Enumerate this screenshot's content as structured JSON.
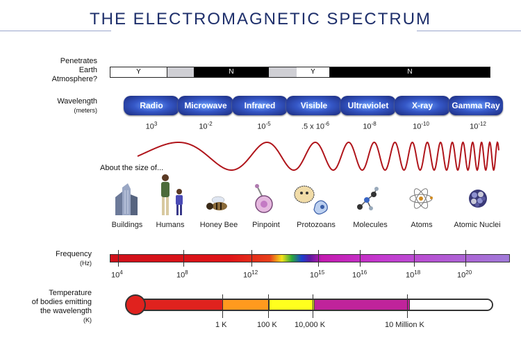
{
  "title": "THE ELECTROMAGNETIC SPECTRUM",
  "atmosphere": {
    "label_line1": "Penetrates",
    "label_line2": "Earth",
    "label_line3": "Atmosphere?",
    "segments": [
      {
        "text": "Y",
        "color": "#ffffff"
      },
      {
        "text": "",
        "color": "#cfcfd4"
      },
      {
        "text": "N",
        "color": "#000000"
      },
      {
        "text": "",
        "color": "#cfcfd4"
      },
      {
        "text": "Y",
        "color": "#ffffff"
      },
      {
        "text": "N",
        "color": "#000000"
      }
    ]
  },
  "wavelength": {
    "label": "Wavelength",
    "unit": "(meters)",
    "bands": [
      "Radio",
      "Microwave",
      "Infrared",
      "Visible",
      "Ultraviolet",
      "X-ray",
      "Gamma Ray"
    ],
    "values": [
      {
        "base": "10",
        "exp": "3"
      },
      {
        "base": "10",
        "exp": "-2"
      },
      {
        "base": "10",
        "exp": "-5"
      },
      {
        "base": ".5 x 10",
        "exp": "-6"
      },
      {
        "base": "10",
        "exp": "-8"
      },
      {
        "base": "10",
        "exp": "-10"
      },
      {
        "base": "10",
        "exp": "-12"
      }
    ]
  },
  "size": {
    "label": "About the size of...",
    "items": [
      "Buildings",
      "Humans",
      "Honey Bee",
      "Pinpoint",
      "Protozoans",
      "Molecules",
      "Atoms",
      "Atomic Nuclei"
    ],
    "icons": [
      "building-icon",
      "humans-icon",
      "honey-bee-icon",
      "pinpoint-icon",
      "protozoans-icon",
      "molecules-icon",
      "atom-icon",
      "atomic-nucleus-icon"
    ]
  },
  "frequency": {
    "label": "Frequency",
    "unit": "(Hz)",
    "ticks": [
      {
        "base": "10",
        "exp": "4"
      },
      {
        "base": "10",
        "exp": "8"
      },
      {
        "base": "10",
        "exp": "12"
      },
      {
        "base": "10",
        "exp": "15"
      },
      {
        "base": "10",
        "exp": "16"
      },
      {
        "base": "10",
        "exp": "18"
      },
      {
        "base": "10",
        "exp": "20"
      }
    ]
  },
  "temperature": {
    "label_line1": "Temperature",
    "label_line2": "of bodies emitting",
    "label_line3": "the wavelength",
    "unit": "(K)",
    "ticks": [
      "1 K",
      "100 K",
      "10,000 K",
      "10 Million K"
    ]
  },
  "colors": {
    "title": "#1e2f6b",
    "band": "#3557c7",
    "wave": "#b0151b",
    "thermometer_red": "#e0221e",
    "orange": "#ff9a1e",
    "yellow": "#ffff1e",
    "purple": "#c0239b"
  }
}
